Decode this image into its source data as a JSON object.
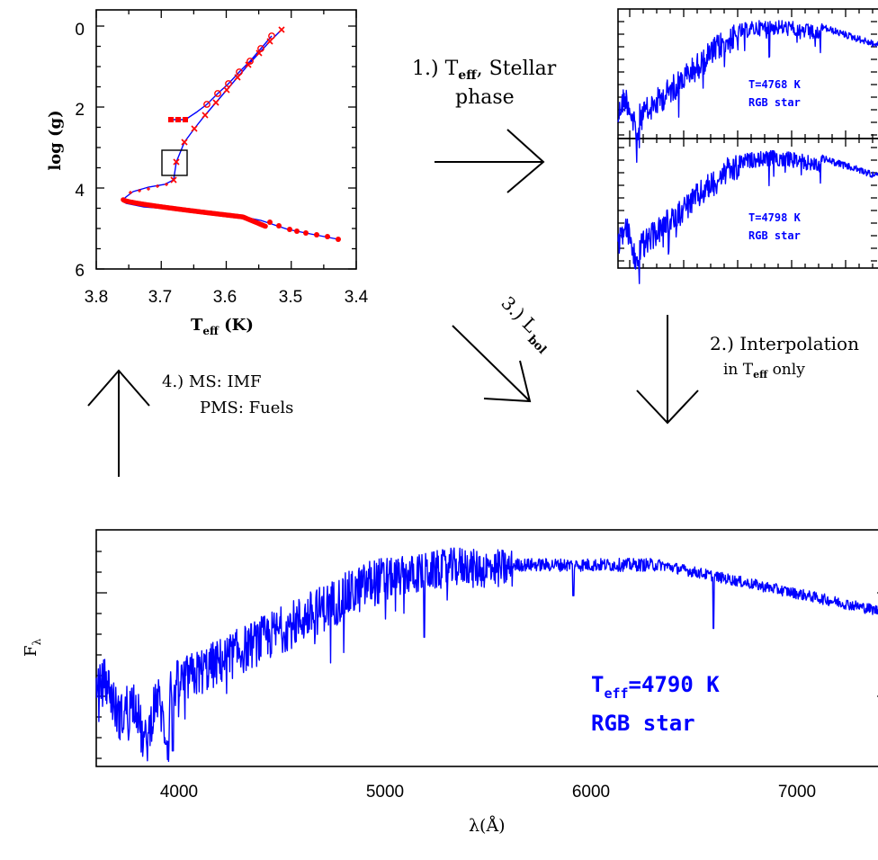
{
  "hr_panel": {
    "ylabel": "log (g)",
    "xlabel_main": "T",
    "xlabel_sub": "eff",
    "xlabel_unit": " (K)",
    "x_ticks": [
      "3.8",
      "3.7",
      "3.6",
      "3.5",
      "3.4"
    ],
    "y_ticks": [
      "0",
      "2",
      "4",
      "6"
    ],
    "xlim": [
      3.8,
      3.4
    ],
    "ylim": [
      -0.4,
      6.0
    ]
  },
  "small_spectra": [
    {
      "temp_label": "T=4768 K",
      "phase_label": "RGB star"
    },
    {
      "temp_label": "T=4798 K",
      "phase_label": "RGB star"
    }
  ],
  "steps": {
    "step1_a": "1.) T",
    "step1_sub": "eff",
    "step1_b": ", Stellar",
    "step1_c": "phase",
    "step2_a": "2.) Interpolation",
    "step2_b": "in T",
    "step2_sub": "eff",
    "step2_c": " only",
    "step3_a": "3.) L",
    "step3_sub": "bol",
    "step4_a": "4.) MS: IMF",
    "step4_b": "PMS: Fuels"
  },
  "main_spectrum": {
    "ylabel": "F",
    "ylabel_sub": "λ",
    "xlabel": "λ(Å)",
    "x_ticks": [
      "4000",
      "5000",
      "6000",
      "7000"
    ],
    "xlim": [
      3600,
      7400
    ],
    "temp_label_main": "T",
    "temp_label_sub": "eff",
    "temp_label_value": "=4790 K",
    "phase_label": "RGB star"
  },
  "chart_data": [
    {
      "type": "line",
      "xlabel": "Teff (K)",
      "ylabel": "log (g)",
      "xlim": [
        3.8,
        3.4
      ],
      "ylim": [
        6,
        -0.4
      ],
      "series": [
        {
          "x": [
            3.51,
            3.55,
            3.6,
            3.63,
            3.66,
            3.67,
            3.675,
            3.68,
            3.7,
            3.72,
            3.75,
            3.7,
            3.65,
            3.6,
            3.55,
            3.5,
            3.45,
            3.42
          ],
          "values": [
            -0.05,
            0.6,
            1.4,
            2.1,
            2.8,
            3.3,
            3.5,
            3.8,
            4.0,
            4.15,
            4.3,
            4.5,
            4.55,
            4.6,
            4.7,
            4.9,
            5.1,
            5.25
          ]
        }
      ]
    },
    {
      "type": "line",
      "xlabel": "λ(Å)",
      "ylabel": "Fλ",
      "xlim": [
        3600,
        7400
      ],
      "x": [
        3600,
        3700,
        3800,
        3900,
        4000,
        4200,
        4500,
        4800,
        5000,
        5300,
        5600,
        6000,
        6300,
        6600,
        7000,
        7400
      ],
      "values": [
        0.55,
        0.45,
        0.62,
        0.4,
        0.6,
        0.92,
        1.22,
        1.34,
        1.36,
        1.42,
        1.41,
        1.4,
        1.39,
        1.33,
        1.25,
        1.13
      ]
    }
  ]
}
